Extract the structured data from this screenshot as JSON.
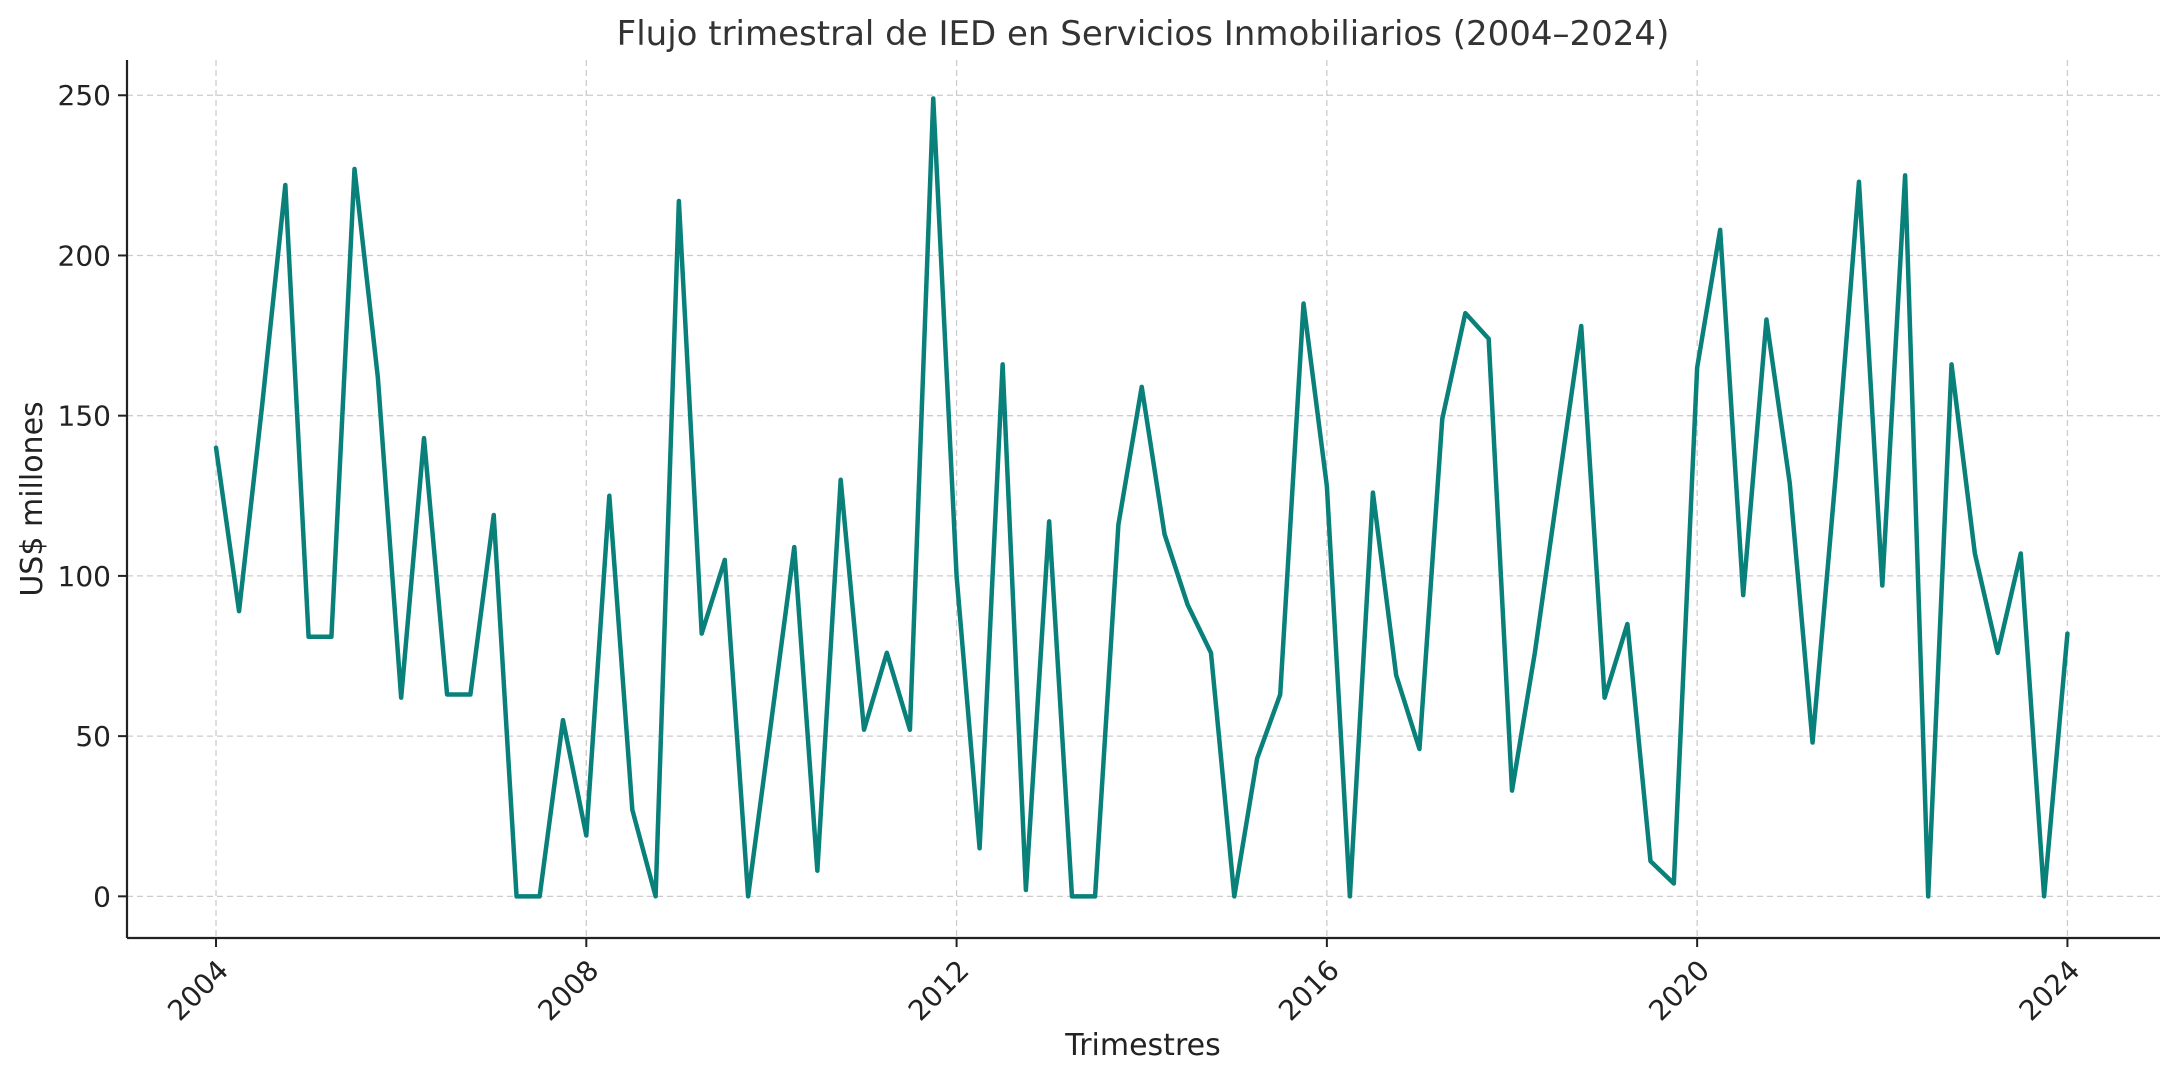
{
  "chart_data": {
    "type": "line",
    "title": "Flujo trimestral de IED en Servicios Inmobiliarios (2004–2024)",
    "xlabel": "Trimestres",
    "ylabel": "US$ millones",
    "xlim": [
      "2003-01-15",
      "2025-01-01"
    ],
    "ylim": [
      -13,
      261
    ],
    "xticks": [
      "2004",
      "2008",
      "2012",
      "2016",
      "2020",
      "2024"
    ],
    "yticks": [
      0,
      50,
      100,
      150,
      200,
      250
    ],
    "grid": true,
    "color": "#0a807a",
    "x": [
      "2004-01-01",
      "2004-04-01",
      "2004-07-01",
      "2004-10-01",
      "2005-01-01",
      "2005-04-01",
      "2005-07-01",
      "2005-10-01",
      "2006-01-01",
      "2006-04-01",
      "2006-07-01",
      "2006-10-01",
      "2007-01-01",
      "2007-04-01",
      "2007-07-01",
      "2007-10-01",
      "2008-01-01",
      "2008-04-01",
      "2008-07-01",
      "2008-10-01",
      "2009-01-01",
      "2009-04-01",
      "2009-07-01",
      "2009-10-01",
      "2010-01-01",
      "2010-04-01",
      "2010-07-01",
      "2010-10-01",
      "2011-01-01",
      "2011-04-01",
      "2011-07-01",
      "2011-10-01",
      "2012-01-01",
      "2012-04-01",
      "2012-07-01",
      "2012-10-01",
      "2013-01-01",
      "2013-04-01",
      "2013-07-01",
      "2013-10-01",
      "2014-01-01",
      "2014-04-01",
      "2014-07-01",
      "2014-10-01",
      "2015-01-01",
      "2015-04-01",
      "2015-07-01",
      "2015-10-01",
      "2016-01-01",
      "2016-04-01",
      "2016-07-01",
      "2016-10-01",
      "2017-01-01",
      "2017-04-01",
      "2017-07-01",
      "2017-10-01",
      "2018-01-01",
      "2018-04-01",
      "2018-07-01",
      "2018-10-01",
      "2019-01-01",
      "2019-04-01",
      "2019-07-01",
      "2019-10-01",
      "2020-01-01",
      "2020-04-01",
      "2020-07-01",
      "2020-10-01",
      "2021-01-01",
      "2021-04-01",
      "2021-07-01",
      "2021-10-01",
      "2022-01-01",
      "2022-04-01",
      "2022-07-01",
      "2022-10-01",
      "2023-01-01",
      "2023-04-01",
      "2023-07-01",
      "2023-10-01",
      "2024-01-01"
    ],
    "values": [
      140,
      89,
      153,
      222,
      81,
      81,
      227,
      162,
      62,
      143,
      63,
      63,
      119,
      0,
      0,
      55,
      19,
      125,
      27,
      0,
      217,
      82,
      105,
      0,
      55,
      109,
      8,
      130,
      52,
      76,
      52,
      249,
      100,
      15,
      166,
      2,
      117,
      0,
      0,
      116,
      159,
      113,
      91,
      76,
      0,
      43,
      63,
      185,
      128,
      0,
      126,
      69,
      46,
      149,
      182,
      174,
      33,
      76,
      127,
      178,
      62,
      85,
      11,
      4,
      165,
      208,
      94,
      180,
      129,
      48,
      131,
      223,
      97,
      225,
      0,
      166,
      107,
      76,
      107,
      0,
      82
    ]
  }
}
